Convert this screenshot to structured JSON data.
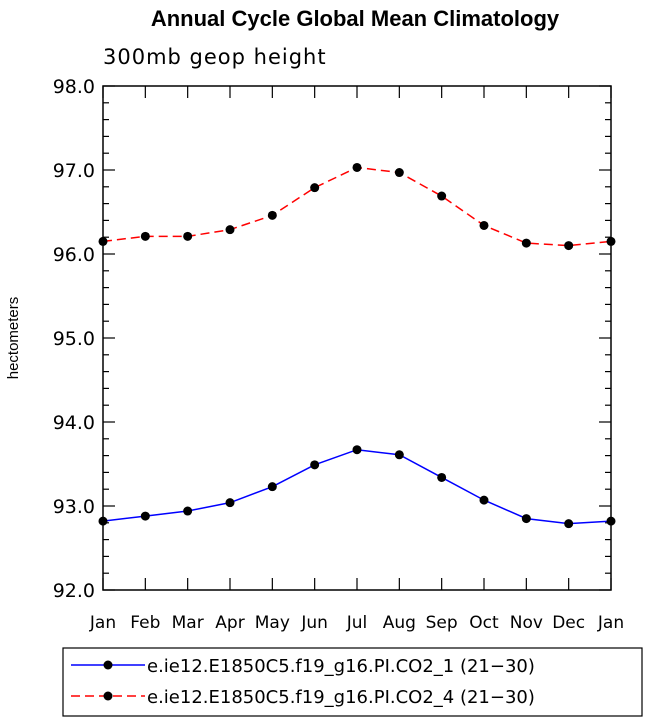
{
  "chart_data": {
    "type": "line",
    "title": "Annual Cycle Global Mean Climatology",
    "subtitle": "300mb geop height",
    "ylabel": "hectometers",
    "xlabel": "",
    "categories": [
      "Jan",
      "Feb",
      "Mar",
      "Apr",
      "May",
      "Jun",
      "Jul",
      "Aug",
      "Sep",
      "Oct",
      "Nov",
      "Dec",
      "Jan"
    ],
    "ylim": [
      92.0,
      98.0
    ],
    "yticks": [
      "92.0",
      "93.0",
      "94.0",
      "95.0",
      "96.0",
      "97.0",
      "98.0"
    ],
    "grid": false,
    "legend_position": "bottom",
    "series": [
      {
        "name": "e.ie12.E1850C5.f19_g16.PI.CO2_1 (21−30)",
        "color": "#0000ff",
        "line_style": "solid",
        "marker": "filled-circle",
        "values": [
          92.82,
          92.88,
          92.94,
          93.04,
          93.23,
          93.49,
          93.67,
          93.61,
          93.34,
          93.07,
          92.85,
          92.79,
          92.82
        ]
      },
      {
        "name": "e.ie12.E1850C5.f19_g16.PI.CO2_4 (21−30)",
        "color": "#ff0000",
        "line_style": "dashed",
        "marker": "filled-circle",
        "values": [
          96.15,
          96.21,
          96.21,
          96.29,
          96.46,
          96.79,
          97.03,
          96.97,
          96.69,
          96.34,
          96.13,
          96.1,
          96.15
        ]
      }
    ]
  }
}
